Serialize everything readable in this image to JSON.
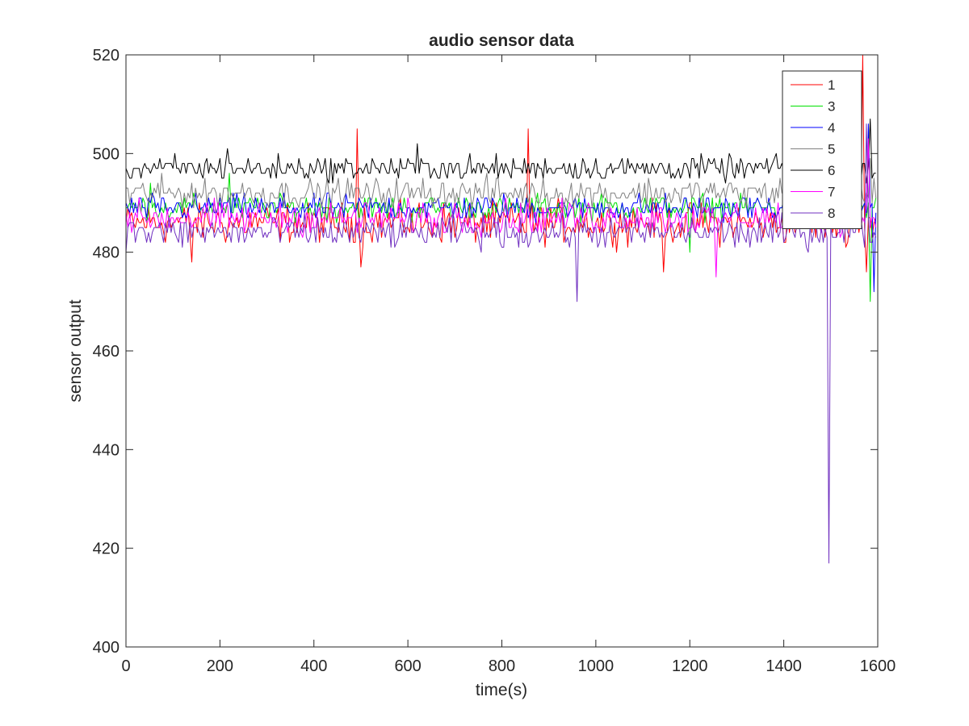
{
  "chart_data": {
    "type": "line",
    "title": "audio sensor data",
    "xlabel": "time(s)",
    "ylabel": "sensor output",
    "xlim": [
      0,
      1600
    ],
    "ylim": [
      400,
      520
    ],
    "xticks": [
      0,
      200,
      400,
      600,
      800,
      1000,
      1200,
      1400,
      1600
    ],
    "yticks": [
      400,
      420,
      440,
      460,
      480,
      500,
      520
    ],
    "grid": false,
    "legend_position": "top-right",
    "series": [
      {
        "name": "1",
        "color": "#ff0000",
        "base": 486,
        "noise": 2.5,
        "x_end": 1598,
        "spikes": [
          [
            140,
            478
          ],
          [
            490,
            505
          ],
          [
            500,
            477
          ],
          [
            855,
            505
          ],
          [
            1145,
            476
          ],
          [
            1567,
            520
          ],
          [
            1575,
            476
          ]
        ]
      },
      {
        "name": "3",
        "color": "#00e000",
        "base": 489,
        "noise": 1.6,
        "x_end": 1598,
        "spikes": [
          [
            50,
            494
          ],
          [
            220,
            496
          ],
          [
            1200,
            480
          ],
          [
            1585,
            470
          ]
        ]
      },
      {
        "name": "4",
        "color": "#0000ff",
        "base": 489,
        "noise": 1.6,
        "x_end": 1598,
        "spikes": [
          [
            1580,
            506
          ],
          [
            1590,
            472
          ]
        ]
      },
      {
        "name": "5",
        "color": "#808080",
        "base": 492,
        "noise": 1.8,
        "x_end": 1598,
        "spikes": [
          [
            1585,
            499
          ]
        ]
      },
      {
        "name": "6",
        "color": "#000000",
        "base": 497,
        "noise": 1.5,
        "x_end": 1598,
        "spikes": [
          [
            215,
            501
          ],
          [
            620,
            502
          ],
          [
            1585,
            507
          ]
        ]
      },
      {
        "name": "7",
        "color": "#ff00ff",
        "base": 487,
        "noise": 2.0,
        "x_end": 1598,
        "spikes": [
          [
            1255,
            475
          ],
          [
            1580,
            503
          ]
        ]
      },
      {
        "name": "8",
        "color": "#7030c0",
        "base": 484,
        "noise": 2.0,
        "x_end": 1598,
        "spikes": [
          [
            960,
            470
          ],
          [
            1497,
            417
          ],
          [
            1575,
            506
          ]
        ]
      }
    ]
  }
}
